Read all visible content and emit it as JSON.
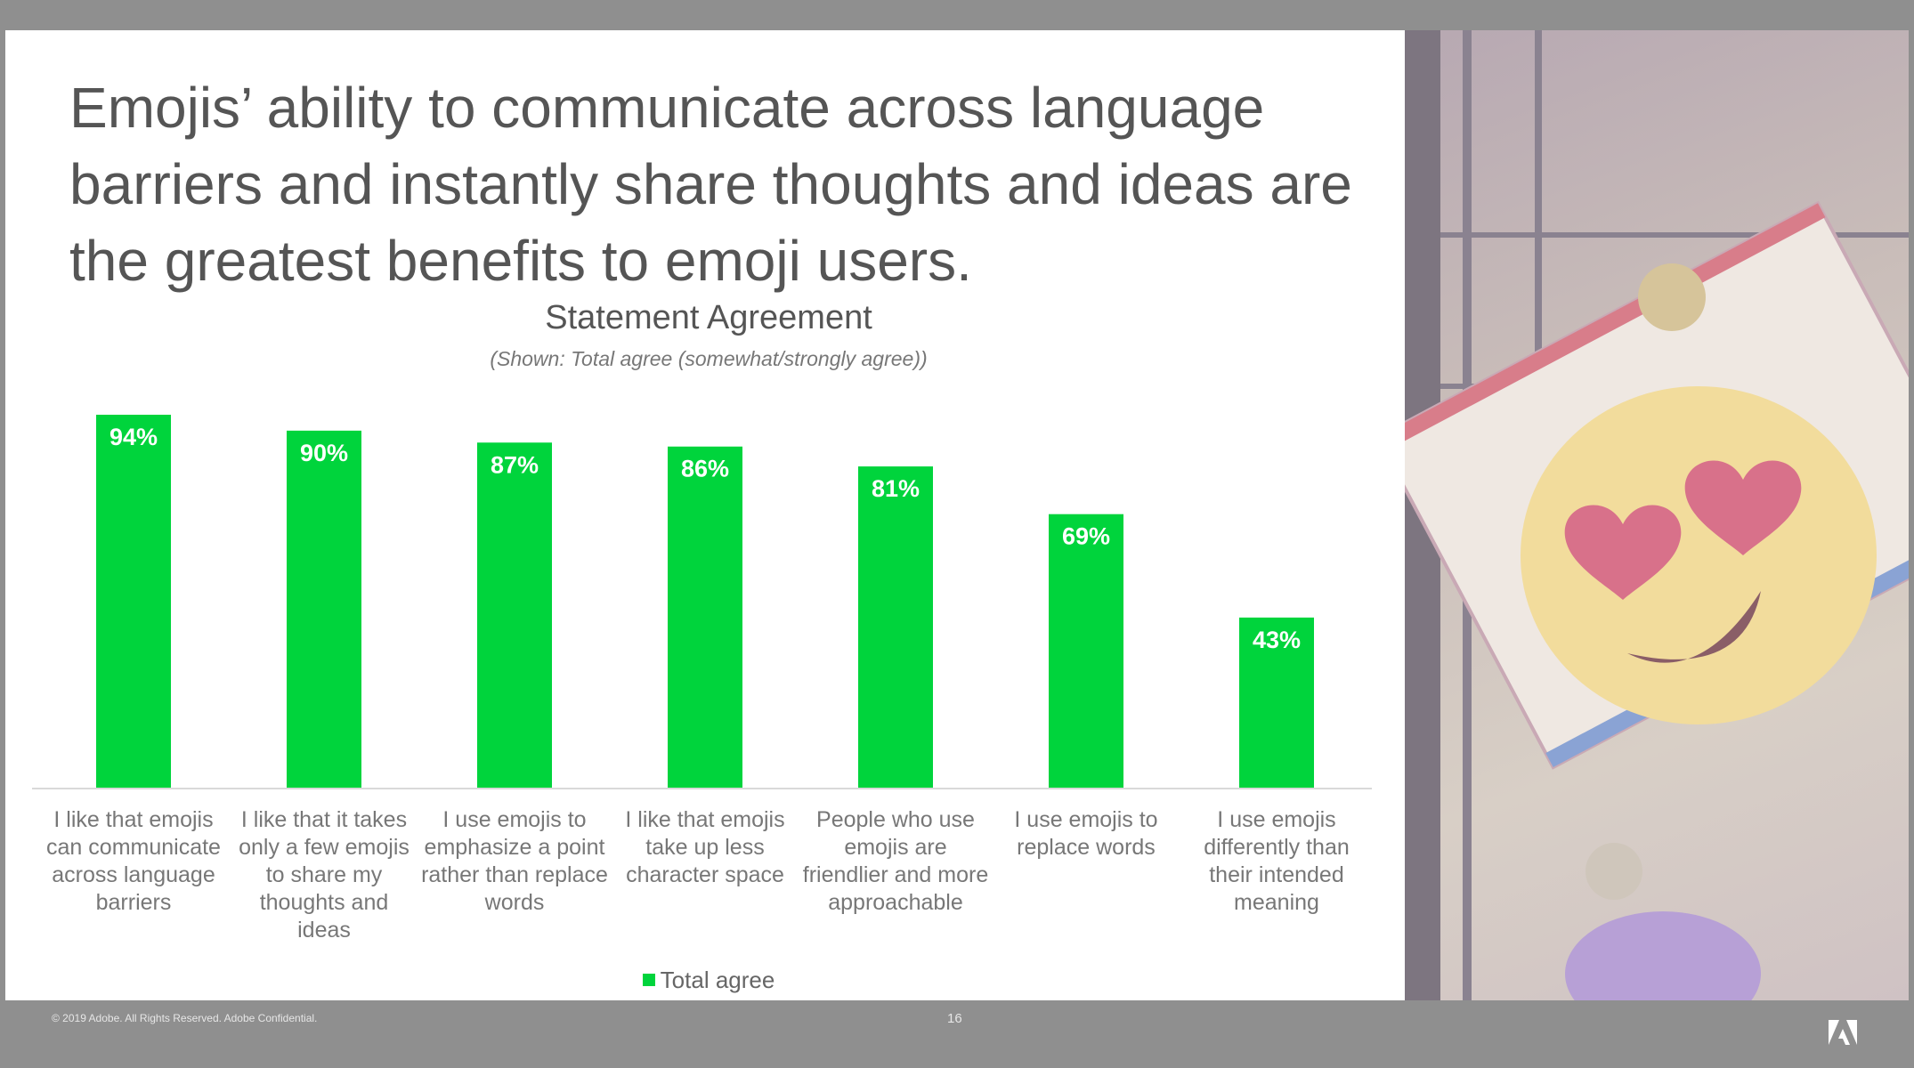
{
  "headline": "Emojis’ ability to communicate across language barriers and instantly share thoughts and ideas are the greatest benefits to emoji users.",
  "chart_data": {
    "type": "bar",
    "title": "Statement Agreement",
    "subtitle": "(Shown: Total agree (somewhat/strongly agree))",
    "categories": [
      "I like that emojis can communicate across language barriers",
      "I like that it takes only a few emojis to share my thoughts and ideas",
      "I use emojis to emphasize a point rather than replace words",
      "I like that emojis take up less character space",
      "People who use emojis are friendlier and more approachable",
      "I use emojis to replace words",
      "I use emojis differently than their intended meaning"
    ],
    "series": [
      {
        "name": "Total agree",
        "color": "#00d43c",
        "values": [
          94,
          90,
          87,
          86,
          81,
          69,
          43
        ],
        "data_labels": [
          "94%",
          "90%",
          "87%",
          "86%",
          "81%",
          "69%",
          "43%"
        ]
      }
    ],
    "ylim": [
      0,
      100
    ],
    "grid": false,
    "legend_position": "bottom"
  },
  "footer": {
    "copyright": "© 2019 Adobe. All Rights Reserved. Adobe Confidential.",
    "page_number": "16"
  },
  "icons": {
    "logo": "adobe-logo-icon",
    "photo": "emoji-plush-photo"
  },
  "colors": {
    "frame": "#8f8f8f",
    "bar": "#00d43c",
    "text": "#555555"
  }
}
